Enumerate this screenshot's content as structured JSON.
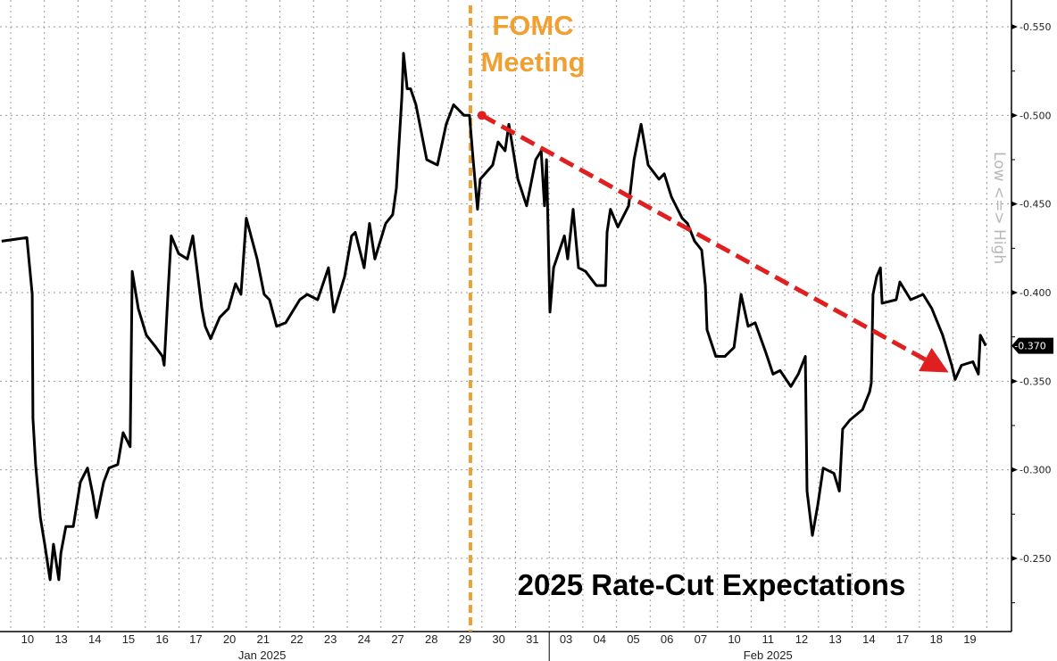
{
  "chart_data": {
    "type": "line",
    "title": "2025 Rate-Cut Expectations",
    "ylabel": "Low <=> High",
    "ylim": [
      -0.25,
      -0.55
    ],
    "y_inverted": true,
    "yticks": [
      "-0.550",
      "-0.500",
      "-0.450",
      "-0.400",
      "-0.350",
      "-0.300",
      "-0.250"
    ],
    "ytick_values": [
      -0.55,
      -0.5,
      -0.45,
      -0.4,
      -0.35,
      -0.3,
      -0.25
    ],
    "x_categories": [
      "10",
      "13",
      "14",
      "15",
      "16",
      "17",
      "20",
      "21",
      "22",
      "23",
      "24",
      "27",
      "28",
      "29",
      "30",
      "31",
      "03",
      "04",
      "05",
      "06",
      "07",
      "10",
      "11",
      "12",
      "13",
      "14",
      "17",
      "18",
      "19"
    ],
    "months": [
      {
        "label": "Jan 2025",
        "start": 0,
        "end": 16
      },
      {
        "label": "Feb 2025",
        "start": 16,
        "end": 29
      }
    ],
    "grid": true,
    "last_value_label": "-0.370",
    "last_value": -0.37,
    "annotation": {
      "line1": "FOMC",
      "line2": "Meeting",
      "x": 13.66,
      "color": "#f0a030"
    },
    "trend_arrow": {
      "from": [
        14.0,
        -0.5
      ],
      "to": [
        27.96,
        -0.354
      ],
      "color": "#e02020"
    },
    "series": [
      {
        "name": "2025 Rate-Cut Expectations",
        "color": "#000000",
        "points": [
          [
            -0.27,
            -0.429
          ],
          [
            0.48,
            -0.431
          ],
          [
            0.64,
            -0.399
          ],
          [
            0.66,
            -0.329
          ],
          [
            0.74,
            -0.303
          ],
          [
            0.88,
            -0.273
          ],
          [
            1.01,
            -0.258
          ],
          [
            1.17,
            -0.238
          ],
          [
            1.27,
            -0.258
          ],
          [
            1.43,
            -0.238
          ],
          [
            1.49,
            -0.253
          ],
          [
            1.64,
            -0.268
          ],
          [
            1.86,
            -0.268
          ],
          [
            2.07,
            -0.293
          ],
          [
            2.28,
            -0.301
          ],
          [
            2.44,
            -0.286
          ],
          [
            2.55,
            -0.273
          ],
          [
            2.76,
            -0.293
          ],
          [
            2.92,
            -0.301
          ],
          [
            3.18,
            -0.303
          ],
          [
            3.34,
            -0.321
          ],
          [
            3.55,
            -0.313
          ],
          [
            3.61,
            -0.412
          ],
          [
            3.79,
            -0.391
          ],
          [
            4.03,
            -0.376
          ],
          [
            4.32,
            -0.369
          ],
          [
            4.51,
            -0.364
          ],
          [
            4.56,
            -0.359
          ],
          [
            4.67,
            -0.399
          ],
          [
            4.77,
            -0.432
          ],
          [
            4.99,
            -0.422
          ],
          [
            5.25,
            -0.419
          ],
          [
            5.41,
            -0.432
          ],
          [
            5.68,
            -0.391
          ],
          [
            5.78,
            -0.381
          ],
          [
            5.94,
            -0.374
          ],
          [
            6.21,
            -0.386
          ],
          [
            6.47,
            -0.391
          ],
          [
            6.68,
            -0.405
          ],
          [
            6.84,
            -0.399
          ],
          [
            7.0,
            -0.442
          ],
          [
            7.32,
            -0.419
          ],
          [
            7.53,
            -0.399
          ],
          [
            7.69,
            -0.396
          ],
          [
            7.9,
            -0.381
          ],
          [
            8.17,
            -0.383
          ],
          [
            8.59,
            -0.396
          ],
          [
            8.81,
            -0.399
          ],
          [
            9.12,
            -0.396
          ],
          [
            9.44,
            -0.414
          ],
          [
            9.6,
            -0.389
          ],
          [
            9.92,
            -0.409
          ],
          [
            10.13,
            -0.432
          ],
          [
            10.24,
            -0.434
          ],
          [
            10.5,
            -0.414
          ],
          [
            10.66,
            -0.439
          ],
          [
            10.82,
            -0.419
          ],
          [
            11.14,
            -0.439
          ],
          [
            11.35,
            -0.444
          ],
          [
            11.46,
            -0.459
          ],
          [
            11.62,
            -0.51
          ],
          [
            11.67,
            -0.535
          ],
          [
            11.78,
            -0.515
          ],
          [
            11.88,
            -0.515
          ],
          [
            12.04,
            -0.506
          ],
          [
            12.36,
            -0.475
          ],
          [
            12.68,
            -0.472
          ],
          [
            12.94,
            -0.495
          ],
          [
            13.16,
            -0.506
          ],
          [
            13.47,
            -0.5
          ],
          [
            13.63,
            -0.5
          ],
          [
            13.74,
            -0.475
          ],
          [
            13.87,
            -0.447
          ],
          [
            13.95,
            -0.464
          ],
          [
            14.32,
            -0.472
          ],
          [
            14.48,
            -0.485
          ],
          [
            14.69,
            -0.48
          ],
          [
            14.8,
            -0.495
          ],
          [
            15.07,
            -0.464
          ],
          [
            15.33,
            -0.449
          ],
          [
            15.6,
            -0.475
          ],
          [
            15.76,
            -0.48
          ],
          [
            15.86,
            -0.449
          ],
          [
            15.92,
            -0.475
          ],
          [
            16.02,
            -0.389
          ],
          [
            16.13,
            -0.414
          ],
          [
            16.45,
            -0.432
          ],
          [
            16.55,
            -0.419
          ],
          [
            16.71,
            -0.447
          ],
          [
            16.87,
            -0.414
          ],
          [
            17.08,
            -0.412
          ],
          [
            17.4,
            -0.404
          ],
          [
            17.67,
            -0.404
          ],
          [
            17.72,
            -0.434
          ],
          [
            17.82,
            -0.447
          ],
          [
            18.04,
            -0.437
          ],
          [
            18.36,
            -0.449
          ],
          [
            18.52,
            -0.475
          ],
          [
            18.73,
            -0.495
          ],
          [
            18.94,
            -0.472
          ],
          [
            19.26,
            -0.464
          ],
          [
            19.42,
            -0.467
          ],
          [
            19.63,
            -0.454
          ],
          [
            19.95,
            -0.442
          ],
          [
            20.11,
            -0.439
          ],
          [
            20.32,
            -0.429
          ],
          [
            20.53,
            -0.424
          ],
          [
            20.64,
            -0.404
          ],
          [
            20.69,
            -0.379
          ],
          [
            20.95,
            -0.364
          ],
          [
            21.22,
            -0.364
          ],
          [
            21.49,
            -0.369
          ],
          [
            21.7,
            -0.399
          ],
          [
            21.91,
            -0.381
          ],
          [
            22.12,
            -0.383
          ],
          [
            22.44,
            -0.366
          ],
          [
            22.65,
            -0.354
          ],
          [
            22.86,
            -0.356
          ],
          [
            23.18,
            -0.347
          ],
          [
            23.4,
            -0.354
          ],
          [
            23.61,
            -0.364
          ],
          [
            23.66,
            -0.288
          ],
          [
            23.82,
            -0.263
          ],
          [
            23.98,
            -0.28
          ],
          [
            24.14,
            -0.301
          ],
          [
            24.46,
            -0.298
          ],
          [
            24.62,
            -0.288
          ],
          [
            24.72,
            -0.323
          ],
          [
            24.93,
            -0.328
          ],
          [
            25.31,
            -0.334
          ],
          [
            25.52,
            -0.344
          ],
          [
            25.57,
            -0.349
          ],
          [
            25.62,
            -0.399
          ],
          [
            25.73,
            -0.409
          ],
          [
            25.84,
            -0.414
          ],
          [
            25.89,
            -0.394
          ],
          [
            26.31,
            -0.396
          ],
          [
            26.42,
            -0.406
          ],
          [
            26.74,
            -0.396
          ],
          [
            27.11,
            -0.399
          ],
          [
            27.37,
            -0.391
          ],
          [
            27.69,
            -0.376
          ],
          [
            27.96,
            -0.359
          ],
          [
            28.06,
            -0.351
          ],
          [
            28.25,
            -0.359
          ],
          [
            28.59,
            -0.361
          ],
          [
            28.75,
            -0.354
          ],
          [
            28.81,
            -0.376
          ],
          [
            28.97,
            -0.37
          ]
        ]
      }
    ]
  }
}
